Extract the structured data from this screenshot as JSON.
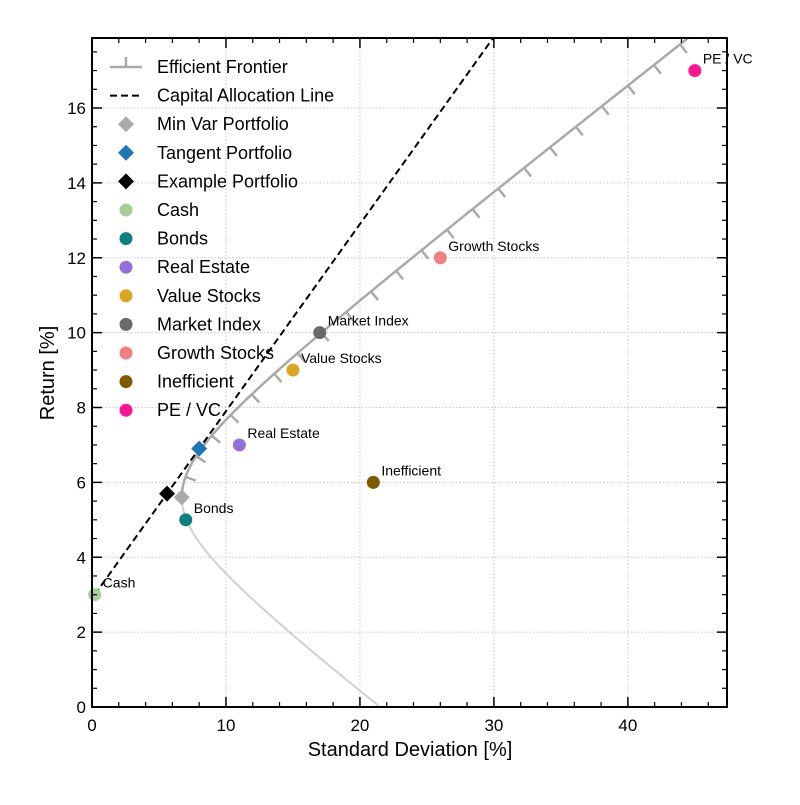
{
  "chart_data": {
    "type": "scatter",
    "title": "",
    "xlabel": "Standard Deviation [%]",
    "ylabel": "Return [%]",
    "xlim": [
      0,
      47.4
    ],
    "ylim": [
      0,
      17.87
    ],
    "xticks": [
      0,
      10,
      20,
      30,
      40
    ],
    "yticks": [
      0,
      2,
      4,
      6,
      8,
      10,
      12,
      14,
      16
    ],
    "xtick_labels": [
      "0",
      "10",
      "20",
      "30",
      "40"
    ],
    "ytick_labels": [
      "0",
      "2",
      "4",
      "6",
      "8",
      "10",
      "12",
      "14",
      "16"
    ],
    "grid": true,
    "legend_position": "top-left",
    "efficient_frontier": {
      "label": "Efficient Frontier",
      "color": "#aaaaaa",
      "min_var": [
        6.7,
        5.6
      ],
      "upper_end": [
        44.5,
        17.87
      ],
      "lower_end": [
        21.5,
        0
      ]
    },
    "capital_allocation_line": {
      "label": "Capital Allocation Line",
      "color": "#000000",
      "start": [
        0.2,
        3.0
      ],
      "slope": 0.5
    },
    "portfolios": [
      {
        "name": "Min Var Portfolio",
        "x": 6.7,
        "y": 5.6,
        "color": "#aaaaaa",
        "marker": "diamond"
      },
      {
        "name": "Tangent Portfolio",
        "x": 8.0,
        "y": 6.9,
        "color": "#1f77b4",
        "marker": "diamond"
      },
      {
        "name": "Example Portfolio",
        "x": 5.6,
        "y": 5.7,
        "color": "#000000",
        "marker": "diamond"
      }
    ],
    "assets": [
      {
        "name": "Cash",
        "x": 0.2,
        "y": 3.0,
        "color": "#a6cf98",
        "label": "Cash"
      },
      {
        "name": "Bonds",
        "x": 7.0,
        "y": 5.0,
        "color": "#0e8080",
        "label": "Bonds"
      },
      {
        "name": "Real Estate",
        "x": 11.0,
        "y": 7.0,
        "color": "#9370db",
        "label": "Real Estate"
      },
      {
        "name": "Value Stocks",
        "x": 15.0,
        "y": 9.0,
        "color": "#daa520",
        "label": "Value Stocks"
      },
      {
        "name": "Market Index",
        "x": 17.0,
        "y": 10.0,
        "color": "#696969",
        "label": "Market Index"
      },
      {
        "name": "Growth Stocks",
        "x": 26.0,
        "y": 12.0,
        "color": "#f08080",
        "label": "Growth Stocks"
      },
      {
        "name": "Inefficient",
        "x": 21.0,
        "y": 6.0,
        "color": "#7f5b00",
        "label": "Inefficient"
      },
      {
        "name": "PE / VC",
        "x": 45.0,
        "y": 17.0,
        "color": "#ff1493",
        "label": "PE / VC"
      }
    ]
  }
}
